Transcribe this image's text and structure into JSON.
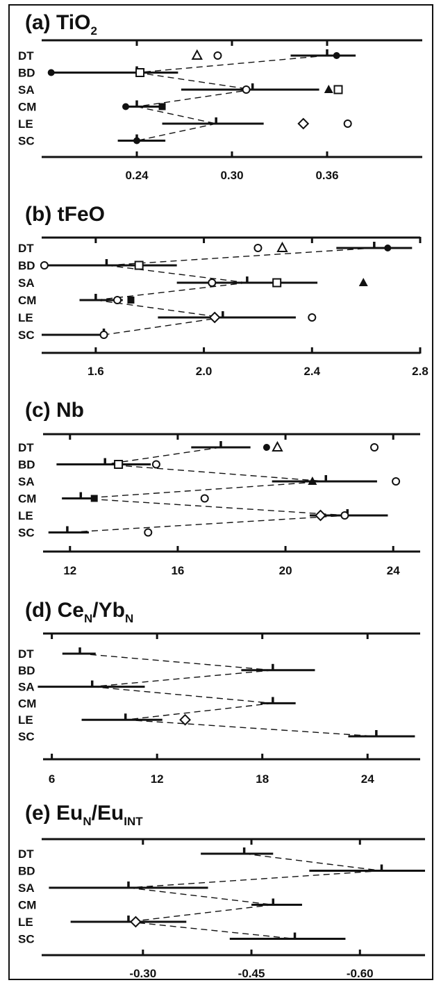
{
  "chart_data": [
    {
      "id": "a",
      "type": "scatter",
      "title": "(a) TiO",
      "title_sub": "2",
      "title_rest": "",
      "xlim": [
        0.18,
        0.42
      ],
      "ticks": [
        0.24,
        0.3,
        0.36
      ],
      "tick_labels": [
        "0.24",
        "0.30",
        "0.36"
      ],
      "rows": [
        {
          "label": "DT",
          "median": 0.36,
          "range": [
            0.337,
            0.378
          ],
          "points": [
            {
              "shape": "filled-circle",
              "x": 0.366
            },
            {
              "shape": "triangle",
              "x": 0.278
            },
            {
              "shape": "circle",
              "x": 0.291
            }
          ]
        },
        {
          "label": "BD",
          "median": 0.24,
          "range": [
            0.186,
            0.266
          ],
          "points": [
            {
              "shape": "filled-circle",
              "x": 0.186
            },
            {
              "shape": "square",
              "x": 0.242
            }
          ]
        },
        {
          "label": "SA",
          "median": 0.313,
          "range": [
            0.268,
            0.355
          ],
          "points": [
            {
              "shape": "circle",
              "x": 0.309
            },
            {
              "shape": "filled-triangle",
              "x": 0.361
            },
            {
              "shape": "square",
              "x": 0.367
            }
          ]
        },
        {
          "label": "CM",
          "median": 0.24,
          "range": [
            0.233,
            0.256
          ],
          "points": [
            {
              "shape": "filled-circle",
              "x": 0.233
            },
            {
              "shape": "filled-square",
              "x": 0.256
            }
          ]
        },
        {
          "label": "LE",
          "median": 0.29,
          "range": [
            0.256,
            0.32
          ],
          "points": [
            {
              "shape": "diamond",
              "x": 0.345
            },
            {
              "shape": "circle",
              "x": 0.373
            }
          ]
        },
        {
          "label": "SC",
          "median": 0.24,
          "range": [
            0.228,
            0.258
          ],
          "points": [
            {
              "shape": "filled-circle",
              "x": 0.24
            }
          ]
        }
      ],
      "dashed_pairs": [
        [
          "DT",
          "BD"
        ],
        [
          "BD",
          "SA"
        ],
        [
          "SA",
          "CM"
        ],
        [
          "CM",
          "LE"
        ],
        [
          "LE",
          "SC"
        ]
      ]
    },
    {
      "id": "b",
      "type": "scatter",
      "title": "(b) tFeO",
      "title_sub": "",
      "title_rest": "",
      "xlim": [
        1.4,
        2.8
      ],
      "ticks": [
        1.6,
        2.0,
        2.4,
        2.8
      ],
      "tick_labels": [
        "1.6",
        "2.0",
        "2.4",
        "2.8"
      ],
      "rows": [
        {
          "label": "DT",
          "median": 2.63,
          "range": [
            2.49,
            2.77
          ],
          "points": [
            {
              "shape": "filled-circle",
              "x": 2.68
            },
            {
              "shape": "circle",
              "x": 2.2
            },
            {
              "shape": "triangle",
              "x": 2.29
            }
          ]
        },
        {
          "label": "BD",
          "median": 1.64,
          "range": [
            1.4,
            1.9
          ],
          "points": [
            {
              "shape": "circle",
              "x": 1.41
            },
            {
              "shape": "square",
              "x": 1.76
            }
          ]
        },
        {
          "label": "SA",
          "median": 2.16,
          "range": [
            1.9,
            2.42
          ],
          "points": [
            {
              "shape": "circle",
              "x": 2.03
            },
            {
              "shape": "square",
              "x": 2.27
            },
            {
              "shape": "filled-triangle",
              "x": 2.59
            }
          ]
        },
        {
          "label": "CM",
          "median": 1.6,
          "range": [
            1.54,
            1.7
          ],
          "points": [
            {
              "shape": "circle",
              "x": 1.68
            },
            {
              "shape": "filled-square",
              "x": 1.73
            }
          ]
        },
        {
          "label": "LE",
          "median": 2.07,
          "range": [
            1.83,
            2.34
          ],
          "points": [
            {
              "shape": "diamond",
              "x": 2.04
            },
            {
              "shape": "circle",
              "x": 2.4
            }
          ]
        },
        {
          "label": "SC",
          "median": 1.63,
          "range": [
            1.4,
            1.64
          ],
          "points": [
            {
              "shape": "circle",
              "x": 1.63
            }
          ]
        }
      ],
      "dashed_pairs": [
        [
          "DT",
          "BD"
        ],
        [
          "BD",
          "SA"
        ],
        [
          "SA",
          "CM"
        ],
        [
          "CM",
          "LE"
        ],
        [
          "LE",
          "SC"
        ]
      ]
    },
    {
      "id": "c",
      "type": "scatter",
      "title": "(c) Nb",
      "title_sub": "",
      "title_rest": "",
      "xlim": [
        11,
        25
      ],
      "ticks": [
        12,
        16,
        20,
        24
      ],
      "tick_labels": [
        "12",
        "16",
        "20",
        "24"
      ],
      "rows": [
        {
          "label": "DT",
          "median": 17.6,
          "range": [
            16.5,
            18.7
          ],
          "points": [
            {
              "shape": "filled-circle",
              "x": 19.3
            },
            {
              "shape": "triangle",
              "x": 19.7
            },
            {
              "shape": "circle",
              "x": 23.3
            }
          ]
        },
        {
          "label": "BD",
          "median": 13.3,
          "range": [
            11.5,
            15.0
          ],
          "points": [
            {
              "shape": "square",
              "x": 13.8
            },
            {
              "shape": "circle",
              "x": 15.2
            }
          ]
        },
        {
          "label": "SA",
          "median": 21.5,
          "range": [
            19.5,
            23.4
          ],
          "points": [
            {
              "shape": "filled-triangle",
              "x": 21.0
            },
            {
              "shape": "circle",
              "x": 24.1
            }
          ]
        },
        {
          "label": "CM",
          "median": 12.4,
          "range": [
            11.7,
            12.9
          ],
          "points": [
            {
              "shape": "filled-square",
              "x": 12.9
            },
            {
              "shape": "circle",
              "x": 17.0
            }
          ]
        },
        {
          "label": "LE",
          "median": 22.3,
          "range": [
            20.9,
            23.8
          ],
          "points": [
            {
              "shape": "diamond",
              "x": 21.3
            },
            {
              "shape": "circle",
              "x": 22.2
            }
          ]
        },
        {
          "label": "SC",
          "median": 11.9,
          "range": [
            11.2,
            12.7
          ],
          "points": [
            {
              "shape": "circle",
              "x": 14.9
            }
          ]
        }
      ],
      "dashed_pairs": [
        [
          "DT",
          "BD"
        ],
        [
          "BD",
          "SA"
        ],
        [
          "SA",
          "CM"
        ],
        [
          "CM",
          "LE"
        ],
        [
          "LE",
          "SC"
        ]
      ]
    },
    {
      "id": "d",
      "type": "scatter",
      "title": "(d) Ce",
      "title_sub": "N",
      "title_rest": "/Yb",
      "title_sub2": "N",
      "xlim": [
        5.5,
        27
      ],
      "ticks": [
        6,
        12,
        18,
        24
      ],
      "tick_labels": [
        "6",
        "12",
        "18",
        "24"
      ],
      "rows": [
        {
          "label": "DT",
          "median": 7.6,
          "range": [
            6.6,
            8.5
          ],
          "points": []
        },
        {
          "label": "BD",
          "median": 18.6,
          "range": [
            16.8,
            21.0
          ],
          "points": []
        },
        {
          "label": "SA",
          "median": 8.3,
          "range": [
            5.2,
            11.3
          ],
          "points": []
        },
        {
          "label": "CM",
          "median": 18.6,
          "range": [
            17.9,
            19.9
          ],
          "points": []
        },
        {
          "label": "LE",
          "median": 10.2,
          "range": [
            7.7,
            12.3
          ],
          "points": [
            {
              "shape": "diamond",
              "x": 13.6
            }
          ]
        },
        {
          "label": "SC",
          "median": 24.5,
          "range": [
            22.9,
            26.7
          ],
          "points": []
        }
      ],
      "dashed_pairs": [
        [
          "DT",
          "BD"
        ],
        [
          "BD",
          "SA"
        ],
        [
          "SA",
          "CM"
        ],
        [
          "CM",
          "LE"
        ],
        [
          "LE",
          "SC"
        ]
      ]
    },
    {
      "id": "e",
      "type": "scatter",
      "title": "(e) Eu",
      "title_sub": "N",
      "title_rest": "/Eu",
      "title_sub2": "INT",
      "xlim": [
        -0.16,
        -0.69
      ],
      "ticks": [
        -0.3,
        -0.45,
        -0.6
      ],
      "tick_labels": [
        "-0.30",
        "-0.45",
        "-0.60"
      ],
      "rows": [
        {
          "label": "DT",
          "median": -0.44,
          "range": [
            -0.38,
            -0.48
          ],
          "points": []
        },
        {
          "label": "BD",
          "median": -0.63,
          "range": [
            -0.53,
            -0.69
          ],
          "points": []
        },
        {
          "label": "SA",
          "median": -0.28,
          "range": [
            -0.17,
            -0.39
          ],
          "points": []
        },
        {
          "label": "CM",
          "median": -0.48,
          "range": [
            -0.45,
            -0.52
          ],
          "points": []
        },
        {
          "label": "LE",
          "median": -0.28,
          "range": [
            -0.2,
            -0.36
          ],
          "points": [
            {
              "shape": "diamond",
              "x": -0.29
            }
          ]
        },
        {
          "label": "SC",
          "median": -0.51,
          "range": [
            -0.42,
            -0.58
          ],
          "points": []
        }
      ],
      "dashed_pairs": [
        [
          "DT",
          "BD"
        ],
        [
          "BD",
          "SA"
        ],
        [
          "SA",
          "CM"
        ],
        [
          "CM",
          "LE"
        ],
        [
          "LE",
          "SC"
        ]
      ]
    }
  ]
}
